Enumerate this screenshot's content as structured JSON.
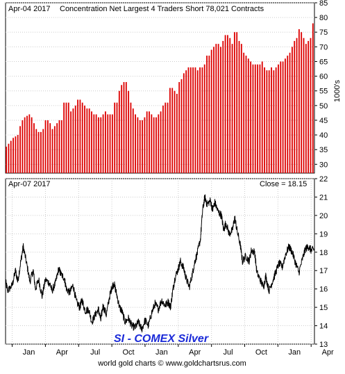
{
  "chart_data": [
    {
      "type": "bar",
      "title": "Concentration Net Largest 4 Traders Short 78,021 Contracts",
      "date_label": "Apr-04  2017",
      "ylabel": "1000's",
      "ylim": [
        27,
        85
      ],
      "yticks": [
        30,
        35,
        40,
        45,
        50,
        55,
        60,
        65,
        70,
        75,
        80,
        85
      ],
      "grid": true,
      "bar_color": "#dd0000",
      "values": [
        36,
        37,
        38,
        39,
        39.5,
        40,
        43,
        45,
        46,
        46.5,
        47,
        46,
        44,
        42,
        41,
        41,
        42,
        45,
        45,
        44,
        42,
        43,
        44,
        45,
        45,
        51,
        51,
        51,
        48,
        49,
        50,
        52,
        52,
        51,
        50,
        49,
        49,
        48,
        47,
        47,
        46,
        46,
        47,
        48,
        47,
        47,
        47,
        51,
        51,
        55,
        57,
        58,
        58,
        55,
        51,
        49,
        47,
        46,
        45,
        45,
        46,
        48,
        48,
        47,
        46,
        46,
        47,
        48,
        50,
        51,
        51,
        56,
        56,
        55,
        54,
        58,
        59,
        61,
        62,
        63,
        63,
        63,
        63,
        62,
        63,
        63,
        64,
        67,
        67,
        69,
        70,
        71,
        71,
        70,
        72,
        74,
        74,
        73,
        71,
        75,
        75,
        72,
        71,
        68,
        67,
        66,
        65,
        64,
        64,
        64,
        64,
        65,
        63,
        62,
        62,
        63,
        62,
        63,
        64,
        65,
        65,
        66,
        67,
        68,
        70,
        72,
        73,
        76,
        75,
        73,
        71,
        72,
        73,
        78
      ]
    },
    {
      "type": "line",
      "date_label": "Apr-07  2017",
      "close_label": "Close = 18.15",
      "series_label": "SI  -  COMEX Silver",
      "ylim": [
        13,
        22
      ],
      "yticks": [
        13,
        14,
        15,
        16,
        17,
        18,
        19,
        20,
        21,
        22
      ],
      "grid": true,
      "line_color": "#000000",
      "xticks": [
        "Jan",
        "Apr",
        "Jul",
        "Oct",
        "Jan",
        "Apr",
        "Jul",
        "Oct",
        "Jan",
        "Apr"
      ],
      "x_range_months": [
        -0.6,
        27.3
      ],
      "anchors": [
        [
          -0.6,
          16.4
        ],
        [
          -0.4,
          15.9
        ],
        [
          0,
          16.2
        ],
        [
          0.3,
          17.0
        ],
        [
          0.5,
          16.4
        ],
        [
          0.8,
          17.6
        ],
        [
          1.0,
          18.3
        ],
        [
          1.3,
          17.4
        ],
        [
          1.6,
          16.4
        ],
        [
          1.9,
          17.0
        ],
        [
          2.1,
          16.0
        ],
        [
          2.4,
          16.5
        ],
        [
          2.7,
          15.6
        ],
        [
          3.0,
          16.5
        ],
        [
          3.4,
          16.3
        ],
        [
          3.6,
          15.9
        ],
        [
          3.9,
          16.3
        ],
        [
          4.2,
          17.1
        ],
        [
          4.4,
          16.8
        ],
        [
          4.7,
          16.6
        ],
        [
          4.9,
          16.0
        ],
        [
          5.2,
          15.8
        ],
        [
          5.5,
          16.2
        ],
        [
          5.8,
          15.3
        ],
        [
          6.1,
          15.0
        ],
        [
          6.3,
          15.4
        ],
        [
          6.6,
          14.8
        ],
        [
          6.9,
          14.9
        ],
        [
          7.2,
          14.2
        ],
        [
          7.5,
          14.6
        ],
        [
          7.8,
          14.9
        ],
        [
          8.0,
          14.3
        ],
        [
          8.2,
          15.1
        ],
        [
          8.5,
          14.6
        ],
        [
          8.8,
          15.6
        ],
        [
          9.0,
          16.1
        ],
        [
          9.2,
          16.3
        ],
        [
          9.4,
          15.8
        ],
        [
          9.7,
          15.0
        ],
        [
          9.9,
          14.8
        ],
        [
          10.2,
          14.2
        ],
        [
          10.5,
          14.4
        ],
        [
          10.8,
          14.0
        ],
        [
          11.1,
          13.9
        ],
        [
          11.4,
          14.2
        ],
        [
          11.7,
          13.8
        ],
        [
          12.0,
          14.3
        ],
        [
          12.3,
          14.0
        ],
        [
          12.6,
          14.7
        ],
        [
          12.9,
          15.2
        ],
        [
          13.2,
          14.9
        ],
        [
          13.5,
          15.4
        ],
        [
          13.8,
          15.1
        ],
        [
          14.1,
          15.3
        ],
        [
          14.3,
          15.0
        ],
        [
          14.5,
          15.9
        ],
        [
          14.7,
          16.6
        ],
        [
          15.0,
          17.1
        ],
        [
          15.2,
          17.5
        ],
        [
          15.5,
          17.1
        ],
        [
          15.7,
          16.6
        ],
        [
          16.0,
          16.1
        ],
        [
          16.3,
          16.9
        ],
        [
          16.5,
          17.5
        ],
        [
          16.7,
          17.9
        ],
        [
          17.0,
          18.7
        ],
        [
          17.2,
          20.3
        ],
        [
          17.4,
          21.0
        ],
        [
          17.6,
          20.6
        ],
        [
          17.9,
          20.8
        ],
        [
          18.1,
          20.3
        ],
        [
          18.3,
          20.7
        ],
        [
          18.6,
          20.2
        ],
        [
          18.9,
          20.0
        ],
        [
          19.1,
          19.2
        ],
        [
          19.3,
          19.6
        ],
        [
          19.6,
          19.0
        ],
        [
          19.9,
          19.2
        ],
        [
          20.1,
          19.9
        ],
        [
          20.3,
          19.2
        ],
        [
          20.6,
          18.4
        ],
        [
          20.8,
          17.5
        ],
        [
          21.1,
          17.8
        ],
        [
          21.4,
          17.5
        ],
        [
          21.6,
          18.1
        ],
        [
          21.9,
          18.0
        ],
        [
          22.1,
          16.9
        ],
        [
          22.4,
          16.5
        ],
        [
          22.7,
          16.1
        ],
        [
          22.9,
          16.7
        ],
        [
          23.2,
          15.9
        ],
        [
          23.5,
          16.4
        ],
        [
          23.8,
          16.9
        ],
        [
          24.1,
          17.4
        ],
        [
          24.4,
          17.2
        ],
        [
          24.7,
          17.9
        ],
        [
          25.0,
          18.3
        ],
        [
          25.3,
          18.0
        ],
        [
          25.6,
          17.4
        ],
        [
          25.9,
          16.9
        ],
        [
          26.2,
          17.6
        ],
        [
          26.5,
          18.2
        ],
        [
          26.8,
          18.3
        ],
        [
          27.0,
          18.1
        ],
        [
          27.3,
          18.15
        ]
      ]
    }
  ],
  "footer": "world gold charts © www.goldchartsrus.com"
}
